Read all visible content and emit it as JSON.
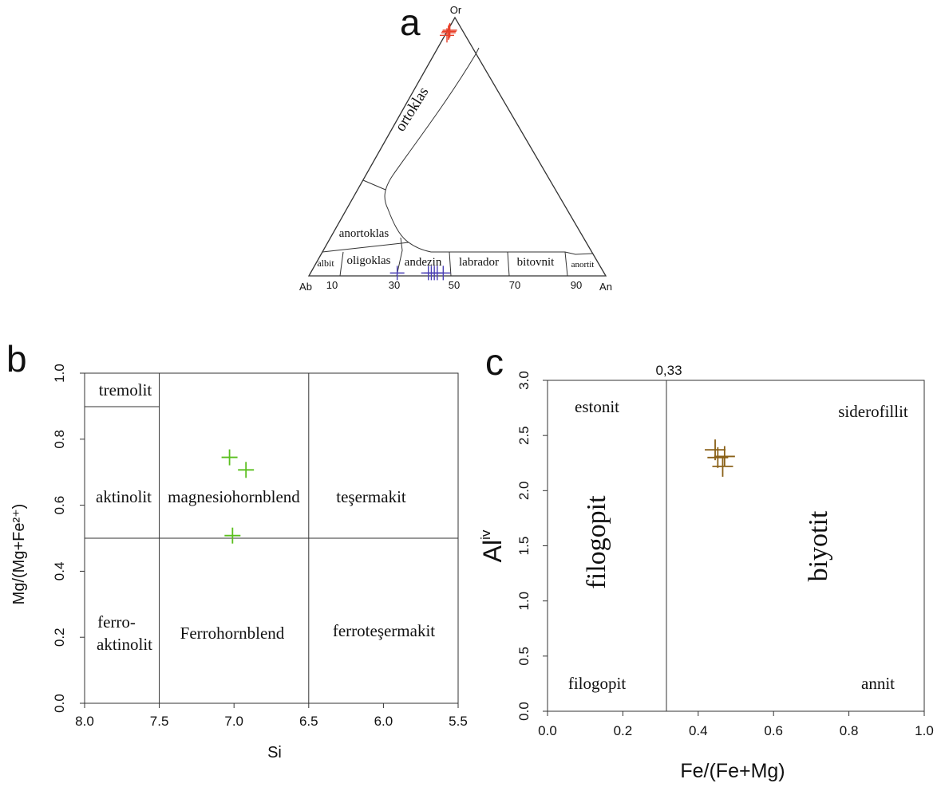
{
  "chart_data": [
    {
      "panel": "a",
      "type": "scatter",
      "subtype": "ternary",
      "vertices": {
        "top": "Or",
        "left": "Ab",
        "right": "An"
      },
      "base_ticks": [
        "10",
        "30",
        "50",
        "70",
        "90"
      ],
      "fields": [
        "ortoklas",
        "anortoklas",
        "albit",
        "oligoklas",
        "andezin",
        "labrador",
        "bitovnit",
        "anortit"
      ],
      "series": [
        {
          "color": "#e8402a",
          "points": [
            {
              "An": 1.0,
              "Ab": 5.5,
              "Or": 93.5
            },
            {
              "An": 1.0,
              "Ab": 4.5,
              "Or": 94.5
            },
            {
              "An": 1.0,
              "Ab": 6.5,
              "Or": 92.5
            },
            {
              "An": 1.0,
              "Ab": 5.0,
              "Or": 94.0
            }
          ]
        },
        {
          "color": "#4a3fb5",
          "points": [
            {
              "An": 29.5,
              "Ab": 70.0,
              "Or": 0.5
            },
            {
              "An": 40.0,
              "Ab": 59.5,
              "Or": 0.5
            },
            {
              "An": 41.0,
              "Ab": 58.5,
              "Or": 0.5
            },
            {
              "An": 42.0,
              "Ab": 57.5,
              "Or": 0.5
            },
            {
              "An": 43.0,
              "Ab": 56.5,
              "Or": 0.5
            },
            {
              "An": 45.0,
              "Ab": 54.5,
              "Or": 0.5
            }
          ]
        }
      ]
    },
    {
      "panel": "b",
      "type": "scatter",
      "xlabel": "Si",
      "ylabel": "Mg/(Mg+Fe²⁺)",
      "xlim": [
        8.0,
        5.5
      ],
      "ylim": [
        0.0,
        1.0
      ],
      "xticks": [
        "8.0",
        "7.5",
        "7.0",
        "6.5",
        "6.0",
        "5.5"
      ],
      "yticks": [
        "0.0",
        "0.2",
        "0.4",
        "0.6",
        "0.8",
        "1.0"
      ],
      "fields": [
        "tremolit",
        "aktinolit",
        "magnesiohornblend",
        "teşermakit",
        "ferro-",
        "aktinolit",
        "Ferrohornblend",
        "ferroteşermakit"
      ],
      "series": [
        {
          "color": "#5abf1e",
          "points": [
            {
              "x": 7.03,
              "y": 0.745
            },
            {
              "x": 6.92,
              "y": 0.707
            },
            {
              "x": 7.01,
              "y": 0.508
            }
          ]
        }
      ]
    },
    {
      "panel": "c",
      "type": "scatter",
      "xlabel": "Fe/(Fe+Mg)",
      "ylabel": "Al",
      "ylabel_sup": "iv",
      "xlim": [
        0.0,
        1.0
      ],
      "ylim": [
        0.0,
        3.0
      ],
      "xticks": [
        "0.0",
        "0.2",
        "0.4",
        "0.6",
        "0.8",
        "1.0"
      ],
      "yticks": [
        "0.0",
        "0.5",
        "1.0",
        "1.5",
        "2.0",
        "2.5",
        "3.0"
      ],
      "divider_label": "0,33",
      "fields": [
        "estonit",
        "siderofillit",
        "filogopit",
        "biyotit",
        "filogopit",
        "annit"
      ],
      "series": [
        {
          "color": "#8a6118",
          "points": [
            {
              "x": 0.445,
              "y": 2.37
            },
            {
              "x": 0.452,
              "y": 2.3
            },
            {
              "x": 0.465,
              "y": 2.22
            },
            {
              "x": 0.47,
              "y": 2.31
            }
          ]
        }
      ]
    }
  ]
}
